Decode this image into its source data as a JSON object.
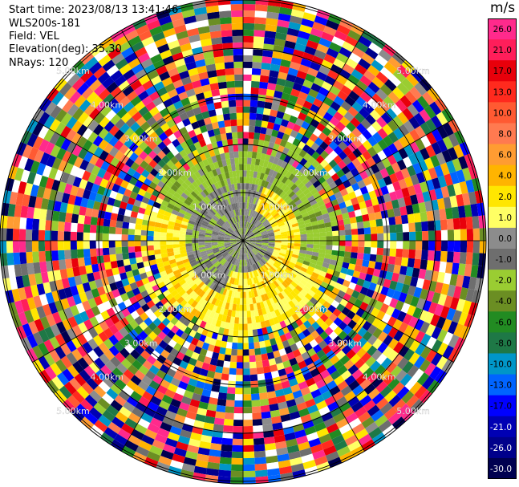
{
  "header": {
    "start_time": "Start time: 2023/08/13 13:41:46",
    "site": "WLS200s-181",
    "field": "Field: VEL",
    "elevation": "Elevation(deg): 35.30",
    "nrays": "NRays: 120"
  },
  "colorbar": {
    "unit": "m/s",
    "ticks": [
      "26.0",
      "21.0",
      "17.0",
      "13.0",
      "10.0",
      "8.0",
      "6.0",
      "4.0",
      "2.0",
      "1.0",
      "0.0",
      "-1.0",
      "-2.0",
      "-4.0",
      "-6.0",
      "-8.0",
      "-10.0",
      "-13.0",
      "-17.0",
      "-21.0",
      "-26.0",
      "-30.0"
    ],
    "colors": [
      "#ff2a8c",
      "#ff1e5a",
      "#e8000b",
      "#ff2a1e",
      "#ff5a32",
      "#ff7a50",
      "#ff9c32",
      "#ffb400",
      "#ffe600",
      "#ffff64",
      "#8c8c8c",
      "#6e6e6e",
      "#9acd32",
      "#6b8e23",
      "#228b22",
      "#1e7846",
      "#0096c8",
      "#0064ff",
      "#0000ff",
      "#0000b4",
      "#00008b",
      "#000050"
    ]
  },
  "chart_data": {
    "type": "ppi",
    "field": "VEL",
    "units": "m/s",
    "nrays": 120,
    "elevation_deg": 35.3,
    "range_ring_labels": [
      "1.00km",
      "2.00km",
      "3.00km",
      "4.00km",
      "5.00km"
    ],
    "vmin": -30.0,
    "vmax": 26.0
  }
}
